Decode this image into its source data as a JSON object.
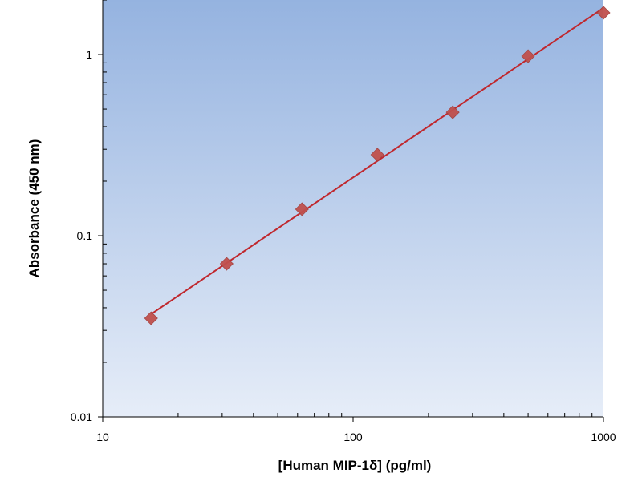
{
  "chart_data": {
    "type": "scatter",
    "title": "",
    "xlabel": "[Human MIP-1δ] (pg/ml)",
    "ylabel": "Absorbance (450 nm)",
    "x_scale": "log",
    "y_scale": "log",
    "xlim": [
      10,
      1000
    ],
    "ylim": [
      0.01,
      2
    ],
    "x_ticks": [
      {
        "value": 10,
        "label": "10"
      },
      {
        "value": 100,
        "label": "100"
      },
      {
        "value": 1000,
        "label": "1000"
      }
    ],
    "y_ticks": [
      {
        "value": 0.01,
        "label": "0.01"
      },
      {
        "value": 0.1,
        "label": "0.1"
      },
      {
        "value": 1,
        "label": "1"
      }
    ],
    "grid": false,
    "legend": "none",
    "series": [
      {
        "x": [
          15.6,
          31.25,
          62.5,
          125,
          250,
          500,
          1000
        ],
        "y": [
          0.035,
          0.07,
          0.14,
          0.28,
          0.48,
          0.98,
          1.7
        ],
        "marker": "diamond",
        "trendline": "power"
      }
    ],
    "colors": {
      "marker": "#c0504d",
      "trendline": "#c0272d",
      "background_top": "#95b3e0",
      "background_bottom": "#e6edf8"
    }
  }
}
